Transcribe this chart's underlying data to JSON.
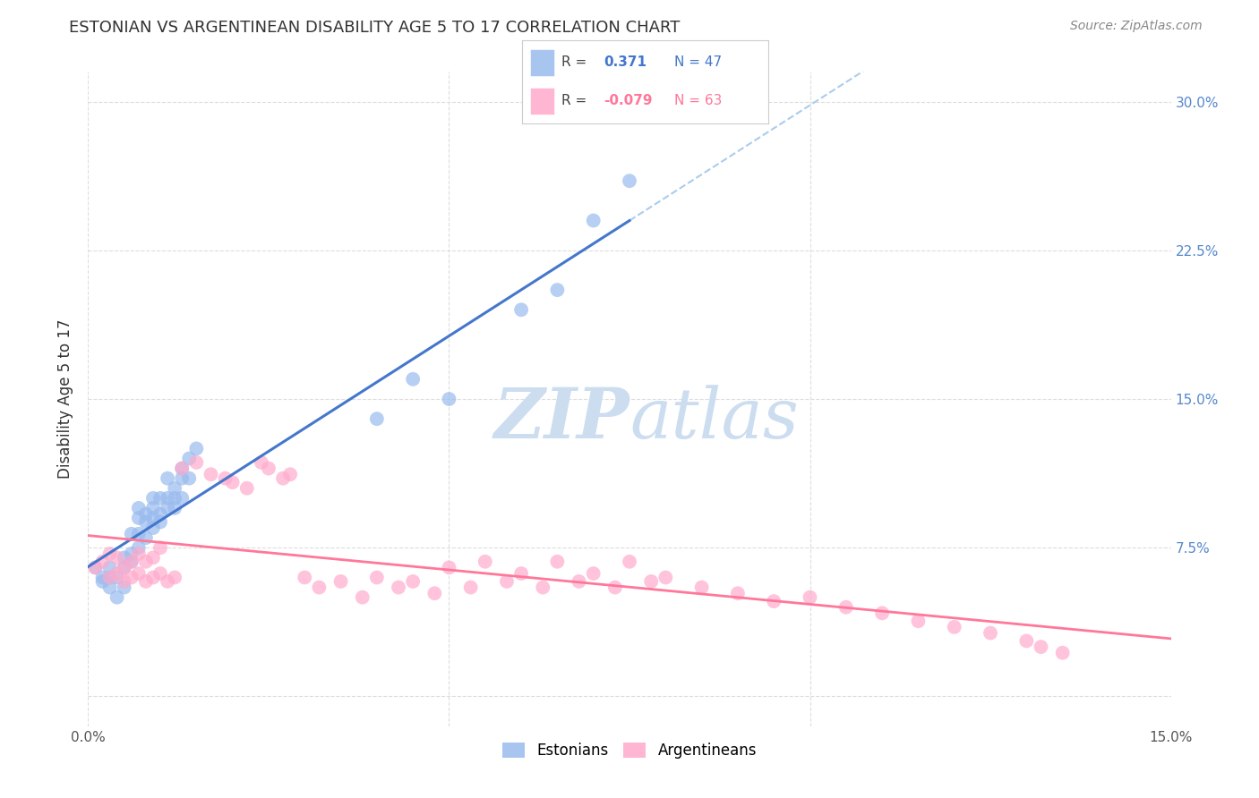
{
  "title": "ESTONIAN VS ARGENTINEAN DISABILITY AGE 5 TO 17 CORRELATION CHART",
  "source": "Source: ZipAtlas.com",
  "ylabel": "Disability Age 5 to 17",
  "xlim": [
    0.0,
    0.15
  ],
  "ylim": [
    -0.015,
    0.315
  ],
  "xticks": [
    0.0,
    0.05,
    0.1,
    0.15
  ],
  "xtick_labels": [
    "0.0%",
    "",
    "",
    "15.0%"
  ],
  "ytick_vals": [
    0.0,
    0.075,
    0.15,
    0.225,
    0.3
  ],
  "ytick_labels_right": [
    "",
    "7.5%",
    "15.0%",
    "22.5%",
    "30.0%"
  ],
  "R_blue": 0.371,
  "N_blue": 47,
  "R_pink": -0.079,
  "N_pink": 63,
  "blue_scatter_color": "#99BBEE",
  "pink_scatter_color": "#FFAACC",
  "blue_line_color": "#4477CC",
  "pink_line_color": "#FF7799",
  "dashed_color": "#AACCEE",
  "watermark_color": "#CCDDF0",
  "background_color": "#FFFFFF",
  "grid_color": "#DDDDDD",
  "title_color": "#333333",
  "source_color": "#888888",
  "legend_edge_color": "#CCCCCC",
  "estonian_x": [
    0.001,
    0.002,
    0.002,
    0.003,
    0.003,
    0.003,
    0.004,
    0.004,
    0.005,
    0.005,
    0.005,
    0.006,
    0.006,
    0.006,
    0.007,
    0.007,
    0.007,
    0.007,
    0.008,
    0.008,
    0.008,
    0.009,
    0.009,
    0.009,
    0.009,
    0.01,
    0.01,
    0.01,
    0.011,
    0.011,
    0.011,
    0.012,
    0.012,
    0.012,
    0.013,
    0.013,
    0.013,
    0.014,
    0.014,
    0.015,
    0.04,
    0.045,
    0.05,
    0.06,
    0.065,
    0.07,
    0.075
  ],
  "estonian_y": [
    0.065,
    0.058,
    0.06,
    0.055,
    0.06,
    0.065,
    0.05,
    0.06,
    0.055,
    0.065,
    0.07,
    0.068,
    0.072,
    0.082,
    0.075,
    0.082,
    0.09,
    0.095,
    0.08,
    0.088,
    0.092,
    0.085,
    0.09,
    0.095,
    0.1,
    0.088,
    0.092,
    0.1,
    0.095,
    0.1,
    0.11,
    0.095,
    0.1,
    0.105,
    0.1,
    0.11,
    0.115,
    0.11,
    0.12,
    0.125,
    0.14,
    0.16,
    0.15,
    0.195,
    0.205,
    0.24,
    0.26
  ],
  "argentinean_x": [
    0.001,
    0.002,
    0.003,
    0.003,
    0.004,
    0.004,
    0.005,
    0.005,
    0.006,
    0.006,
    0.007,
    0.007,
    0.008,
    0.008,
    0.009,
    0.009,
    0.01,
    0.01,
    0.011,
    0.012,
    0.013,
    0.015,
    0.017,
    0.019,
    0.02,
    0.022,
    0.024,
    0.025,
    0.027,
    0.028,
    0.03,
    0.032,
    0.035,
    0.038,
    0.04,
    0.043,
    0.045,
    0.048,
    0.05,
    0.053,
    0.055,
    0.058,
    0.06,
    0.063,
    0.065,
    0.068,
    0.07,
    0.073,
    0.075,
    0.078,
    0.08,
    0.085,
    0.09,
    0.095,
    0.1,
    0.105,
    0.11,
    0.115,
    0.12,
    0.125,
    0.13,
    0.132,
    0.135
  ],
  "argentinean_y": [
    0.065,
    0.068,
    0.06,
    0.072,
    0.062,
    0.07,
    0.058,
    0.065,
    0.06,
    0.068,
    0.062,
    0.072,
    0.058,
    0.068,
    0.06,
    0.07,
    0.062,
    0.075,
    0.058,
    0.06,
    0.115,
    0.118,
    0.112,
    0.11,
    0.108,
    0.105,
    0.118,
    0.115,
    0.11,
    0.112,
    0.06,
    0.055,
    0.058,
    0.05,
    0.06,
    0.055,
    0.058,
    0.052,
    0.065,
    0.055,
    0.068,
    0.058,
    0.062,
    0.055,
    0.068,
    0.058,
    0.062,
    0.055,
    0.068,
    0.058,
    0.06,
    0.055,
    0.052,
    0.048,
    0.05,
    0.045,
    0.042,
    0.038,
    0.035,
    0.032,
    0.028,
    0.025,
    0.022
  ]
}
